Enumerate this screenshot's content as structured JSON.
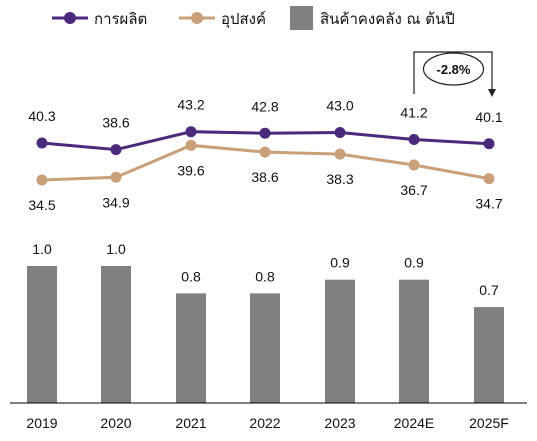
{
  "chart_data": {
    "type": "bar+line",
    "categories": [
      "2019",
      "2020",
      "2021",
      "2022",
      "2023",
      "2024E",
      "2025F"
    ],
    "series": [
      {
        "name": "การผลิต",
        "type": "line",
        "color": "#4b2a7b",
        "marker": "circle",
        "values": [
          40.3,
          38.6,
          43.2,
          42.8,
          43.0,
          41.2,
          40.1
        ]
      },
      {
        "name": "อุปสงค์",
        "type": "line",
        "color": "#c9a07a",
        "marker": "circle",
        "values": [
          34.5,
          34.9,
          39.6,
          38.6,
          38.3,
          36.7,
          34.7
        ]
      },
      {
        "name": "สินค้าคงคลัง ณ ต้นปี",
        "type": "bar",
        "color": "#808080",
        "values": [
          1.0,
          1.0,
          0.8,
          0.8,
          0.9,
          0.9,
          0.7
        ]
      }
    ],
    "data_labels": {
      "production": [
        "40.3",
        "38.6",
        "43.2",
        "42.8",
        "43.0",
        "41.2",
        "40.1"
      ],
      "demand": [
        "34.5",
        "34.9",
        "39.6",
        "38.6",
        "38.3",
        "36.7",
        "34.7"
      ],
      "inventory": [
        "1.0",
        "1.0",
        "0.8",
        "0.8",
        "0.9",
        "0.9",
        "0.7"
      ]
    },
    "annotation": {
      "text": "-2.8%",
      "from": "2024E",
      "to": "2025F"
    },
    "legend_position": "top",
    "grid": false
  }
}
